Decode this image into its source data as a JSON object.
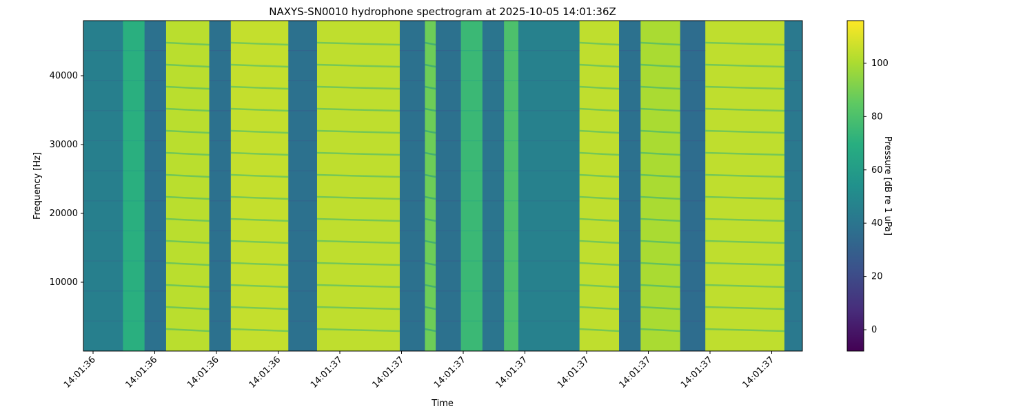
{
  "chart_data": {
    "type": "heatmap",
    "title": "NAXYS-SN0010 hydrophone spectrogram at 2025-10-05 14:01:36Z",
    "xlabel": "Time",
    "ylabel": "Frequency [Hz]",
    "colorbar_label": "Pressure [dB re 1 uPa]",
    "colormap": "viridis",
    "grid": false,
    "ylim": [
      0,
      48000
    ],
    "y_ticks": [
      10000,
      20000,
      30000,
      40000
    ],
    "x_tick_labels": [
      "14:01:36",
      "14:01:36",
      "14:01:36",
      "14:01:36",
      "14:01:37",
      "14:01:37",
      "14:01:37",
      "14:01:37",
      "14:01:37",
      "14:01:37",
      "14:01:37",
      "14:01:37"
    ],
    "colorbar_range": [
      -8,
      116
    ],
    "colorbar_ticks": [
      0,
      20,
      40,
      60,
      80,
      100
    ],
    "time_segments": [
      {
        "start": 0.0,
        "end": 0.055,
        "level": 45
      },
      {
        "start": 0.055,
        "end": 0.085,
        "level": 70
      },
      {
        "start": 0.085,
        "end": 0.115,
        "level": 38
      },
      {
        "start": 0.115,
        "end": 0.175,
        "level": 103
      },
      {
        "start": 0.175,
        "end": 0.205,
        "level": 38
      },
      {
        "start": 0.205,
        "end": 0.285,
        "level": 105
      },
      {
        "start": 0.285,
        "end": 0.325,
        "level": 38
      },
      {
        "start": 0.325,
        "end": 0.44,
        "level": 104
      },
      {
        "start": 0.44,
        "end": 0.475,
        "level": 38
      },
      {
        "start": 0.475,
        "end": 0.49,
        "level": 88
      },
      {
        "start": 0.49,
        "end": 0.525,
        "level": 38
      },
      {
        "start": 0.525,
        "end": 0.555,
        "level": 75
      },
      {
        "start": 0.555,
        "end": 0.585,
        "level": 40
      },
      {
        "start": 0.585,
        "end": 0.605,
        "level": 80
      },
      {
        "start": 0.605,
        "end": 0.69,
        "level": 46
      },
      {
        "start": 0.69,
        "end": 0.745,
        "level": 104
      },
      {
        "start": 0.745,
        "end": 0.775,
        "level": 38
      },
      {
        "start": 0.775,
        "end": 0.83,
        "level": 100
      },
      {
        "start": 0.83,
        "end": 0.865,
        "level": 36
      },
      {
        "start": 0.865,
        "end": 0.975,
        "level": 104
      },
      {
        "start": 0.975,
        "end": 1.0,
        "level": 42
      }
    ]
  }
}
